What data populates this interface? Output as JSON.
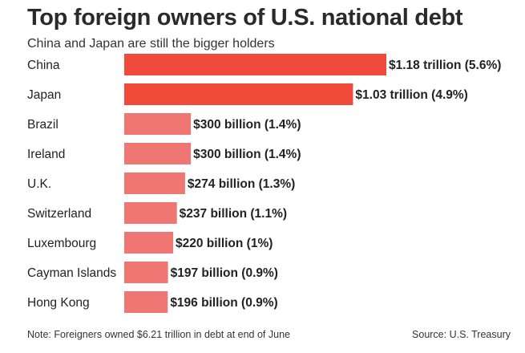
{
  "header": {
    "title": "Top foreign owners of U.S. national debt",
    "subtitle": "China and Japan are still the bigger holders"
  },
  "footer": {
    "note": "Note: Foreigners owned $6.21 trillion in debt at end of June",
    "source": "Source: U.S. Treasury"
  },
  "colors": {
    "top_bar": "#f04a3a",
    "other_bar": "#ef7672",
    "text": "#222222"
  },
  "chart_data": {
    "type": "bar",
    "orientation": "horizontal",
    "unit": "billion USD",
    "categories": [
      "China",
      "Japan",
      "Brazil",
      "Ireland",
      "U.K.",
      "Switzerland",
      "Luxembourg",
      "Cayman Islands",
      "Hong Kong"
    ],
    "values": [
      1180,
      1030,
      300,
      300,
      274,
      237,
      220,
      197,
      196
    ],
    "data_labels": [
      "$1.18 trillion (5.6%)",
      "$1.03 trillion (4.9%)",
      "$300 billion (1.4%)",
      "$300 billion (1.4%)",
      "$274 billion (1.3%)",
      "$237 billion (1.1%)",
      "$220 billion (1%)",
      "$197 billion (0.9%)",
      "$196 billion (0.9%)"
    ],
    "highlighted": [
      true,
      true,
      false,
      false,
      false,
      false,
      false,
      false,
      false
    ],
    "xlim": [
      0,
      1180
    ],
    "grid": false,
    "legend": "none"
  }
}
